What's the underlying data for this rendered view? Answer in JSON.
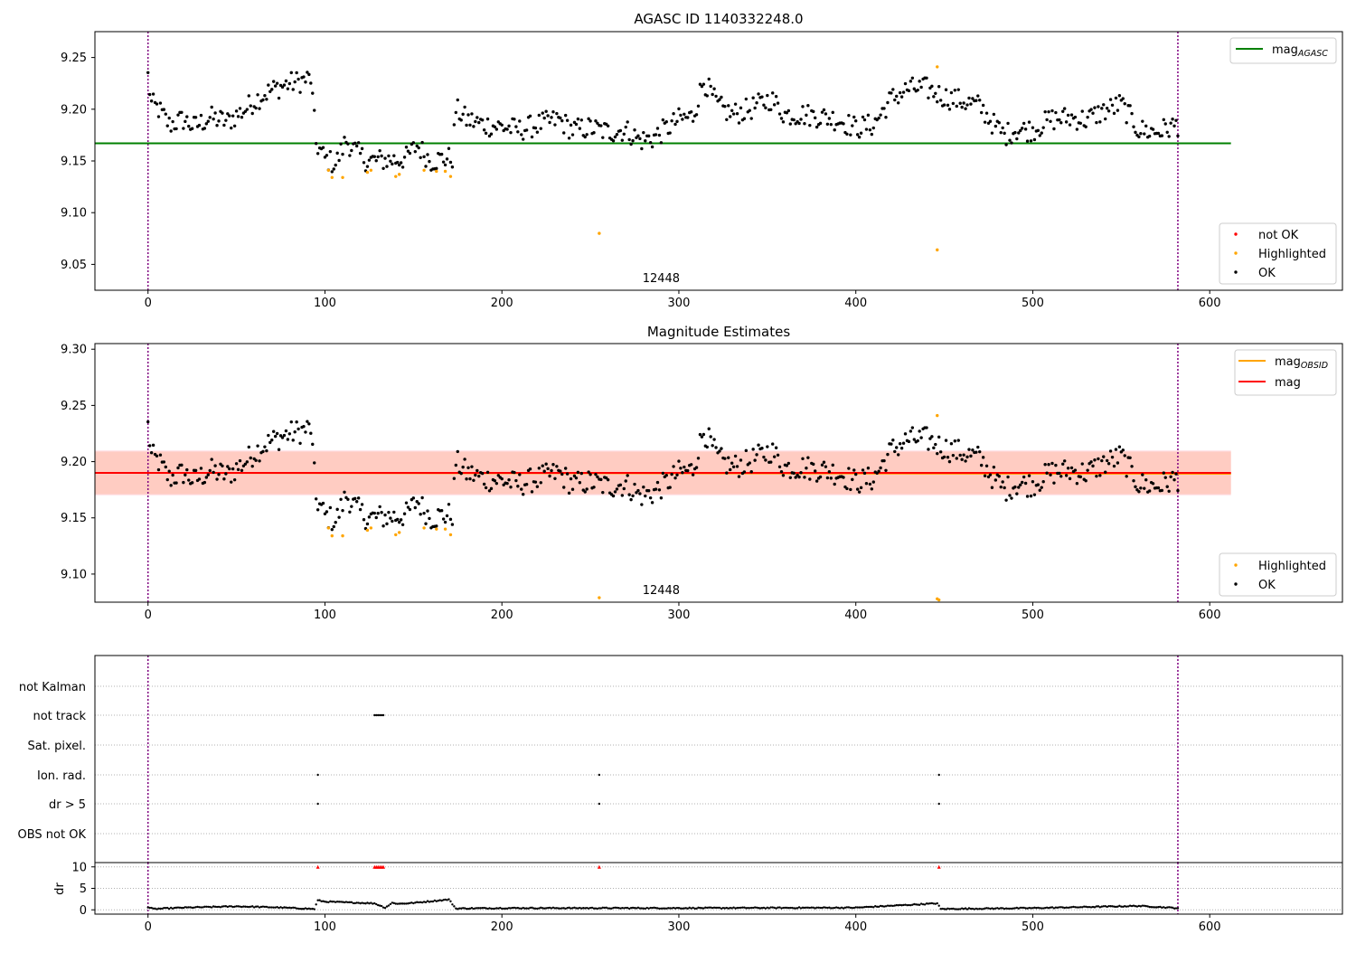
{
  "chart_data": [
    {
      "type": "scatter",
      "title": "AGASC ID 1140332248.0",
      "annotation": "12448",
      "xlim": [
        -30,
        675
      ],
      "ylim": [
        9.025,
        9.275
      ],
      "xticks": [
        0,
        100,
        200,
        300,
        400,
        500,
        600
      ],
      "yticks": [
        9.05,
        9.1,
        9.15,
        9.2,
        9.25
      ],
      "vlines": [
        0,
        582
      ],
      "hlines": [
        {
          "name_sub": "AGASC",
          "value": 9.167,
          "xmax": 612,
          "color": "#008000"
        }
      ],
      "legend_top": [
        {
          "name": "mag",
          "sub": "AGASC",
          "color": "#008000",
          "kind": "line"
        }
      ],
      "legend_bottom": [
        {
          "name": "not OK",
          "color": "#ff0000",
          "kind": "marker"
        },
        {
          "name": "Highlighted",
          "color": "#ffa500",
          "kind": "marker"
        },
        {
          "name": "OK",
          "color": "#000000",
          "kind": "marker"
        }
      ],
      "highlighted_points": [
        [
          102,
          9.141
        ],
        [
          104,
          9.134
        ],
        [
          110,
          9.134
        ],
        [
          124,
          9.139
        ],
        [
          126,
          9.141
        ],
        [
          140,
          9.135
        ],
        [
          142,
          9.137
        ],
        [
          156,
          9.141
        ],
        [
          163,
          9.14
        ],
        [
          168,
          9.14
        ],
        [
          171,
          9.135
        ],
        [
          255,
          9.08
        ],
        [
          446,
          9.064
        ],
        [
          446,
          9.241
        ]
      ],
      "ok_series_anchors": [
        [
          0,
          9.232
        ],
        [
          2,
          9.205
        ],
        [
          6,
          9.2
        ],
        [
          12,
          9.185
        ],
        [
          20,
          9.19
        ],
        [
          26,
          9.183
        ],
        [
          35,
          9.192
        ],
        [
          45,
          9.188
        ],
        [
          55,
          9.2
        ],
        [
          60,
          9.208
        ],
        [
          66,
          9.215
        ],
        [
          72,
          9.22
        ],
        [
          80,
          9.225
        ],
        [
          86,
          9.227
        ],
        [
          92,
          9.23
        ],
        [
          95,
          9.167
        ],
        [
          100,
          9.152
        ],
        [
          106,
          9.147
        ],
        [
          112,
          9.17
        ],
        [
          118,
          9.158
        ],
        [
          124,
          9.15
        ],
        [
          134,
          9.151
        ],
        [
          140,
          9.151
        ],
        [
          146,
          9.153
        ],
        [
          152,
          9.165
        ],
        [
          160,
          9.15
        ],
        [
          166,
          9.152
        ],
        [
          172,
          9.153
        ],
        [
          174,
          9.2
        ],
        [
          180,
          9.19
        ],
        [
          190,
          9.185
        ],
        [
          200,
          9.183
        ],
        [
          210,
          9.18
        ],
        [
          220,
          9.185
        ],
        [
          232,
          9.19
        ],
        [
          240,
          9.18
        ],
        [
          250,
          9.182
        ],
        [
          260,
          9.178
        ],
        [
          270,
          9.18
        ],
        [
          278,
          9.17
        ],
        [
          285,
          9.172
        ],
        [
          292,
          9.18
        ],
        [
          300,
          9.19
        ],
        [
          308,
          9.193
        ],
        [
          314,
          9.228
        ],
        [
          322,
          9.203
        ],
        [
          330,
          9.195
        ],
        [
          340,
          9.2
        ],
        [
          352,
          9.21
        ],
        [
          360,
          9.195
        ],
        [
          370,
          9.195
        ],
        [
          380,
          9.193
        ],
        [
          390,
          9.19
        ],
        [
          400,
          9.182
        ],
        [
          410,
          9.185
        ],
        [
          420,
          9.21
        ],
        [
          430,
          9.22
        ],
        [
          440,
          9.22
        ],
        [
          450,
          9.212
        ],
        [
          460,
          9.208
        ],
        [
          470,
          9.203
        ],
        [
          478,
          9.185
        ],
        [
          484,
          9.175
        ],
        [
          490,
          9.18
        ],
        [
          500,
          9.18
        ],
        [
          510,
          9.19
        ],
        [
          520,
          9.192
        ],
        [
          530,
          9.19
        ],
        [
          540,
          9.198
        ],
        [
          550,
          9.205
        ],
        [
          560,
          9.18
        ],
        [
          570,
          9.178
        ],
        [
          582,
          9.185
        ]
      ]
    },
    {
      "type": "scatter",
      "title": "Magnitude Estimates",
      "annotation": "12448",
      "xlim": [
        -30,
        675
      ],
      "ylim": [
        9.075,
        9.305
      ],
      "xticks": [
        0,
        100,
        200,
        300,
        400,
        500,
        600
      ],
      "yticks": [
        9.1,
        9.15,
        9.2,
        9.25,
        9.3
      ],
      "vlines": [
        0,
        582
      ],
      "mag": 9.19,
      "mag_band": [
        9.17,
        9.21
      ],
      "mag_obsid": 9.19,
      "mag_obsid_band": [
        9.171,
        9.209
      ],
      "band_xmax": 612,
      "legend_top": [
        {
          "name": "mag",
          "sub": "OBSID",
          "color": "#ffa500",
          "kind": "line"
        },
        {
          "name": "mag",
          "sub": "",
          "color": "#ff0000",
          "kind": "line"
        }
      ],
      "legend_bottom": [
        {
          "name": "Highlighted",
          "color": "#ffa500",
          "kind": "marker"
        },
        {
          "name": "OK",
          "color": "#000000",
          "kind": "marker"
        }
      ],
      "highlighted_points": [
        [
          102,
          9.141
        ],
        [
          104,
          9.134
        ],
        [
          110,
          9.134
        ],
        [
          124,
          9.139
        ],
        [
          126,
          9.141
        ],
        [
          140,
          9.135
        ],
        [
          142,
          9.137
        ],
        [
          156,
          9.141
        ],
        [
          163,
          9.14
        ],
        [
          168,
          9.14
        ],
        [
          171,
          9.135
        ],
        [
          255,
          9.079
        ],
        [
          446,
          9.078
        ],
        [
          447,
          9.077
        ],
        [
          446,
          9.241
        ]
      ]
    },
    {
      "type": "scatter",
      "title": "",
      "xlim": [
        -30,
        675
      ],
      "categories": [
        "not Kalman",
        "not track",
        "Sat. pixel.",
        "Ion. rad.",
        "dr > 5",
        "OBS not OK"
      ],
      "vlines": [
        0,
        582
      ],
      "flag_points": {
        "not track": [
          [
            128,
            133
          ]
        ],
        "Ion. rad.": [
          [
            96,
            96
          ],
          [
            255,
            255
          ],
          [
            447,
            447
          ]
        ],
        "dr > 5": [
          [
            96,
            96
          ],
          [
            255,
            255
          ],
          [
            447,
            447
          ]
        ]
      },
      "dr_ylabel": "dr",
      "dr_yticks": [
        0,
        5,
        10
      ],
      "dr_ylim": [
        -1,
        11
      ],
      "dr_clipped_points": [
        96,
        128,
        129,
        130,
        131,
        132,
        133,
        255,
        447
      ],
      "dr_anchors": [
        [
          0,
          0.6
        ],
        [
          3,
          0.2
        ],
        [
          20,
          0.5
        ],
        [
          50,
          0.8
        ],
        [
          70,
          0.6
        ],
        [
          94,
          0.2
        ],
        [
          96,
          2.2
        ],
        [
          100,
          1.9
        ],
        [
          128,
          1.5
        ],
        [
          134,
          0.5
        ],
        [
          138,
          1.6
        ],
        [
          142,
          1.4
        ],
        [
          150,
          1.6
        ],
        [
          170,
          2.4
        ],
        [
          174,
          0.3
        ],
        [
          200,
          0.4
        ],
        [
          300,
          0.4
        ],
        [
          400,
          0.5
        ],
        [
          446,
          1.5
        ],
        [
          448,
          0.2
        ],
        [
          500,
          0.4
        ],
        [
          560,
          0.9
        ],
        [
          582,
          0.4
        ]
      ],
      "xticks": [
        0,
        100,
        200,
        300,
        400,
        500,
        600
      ]
    }
  ]
}
